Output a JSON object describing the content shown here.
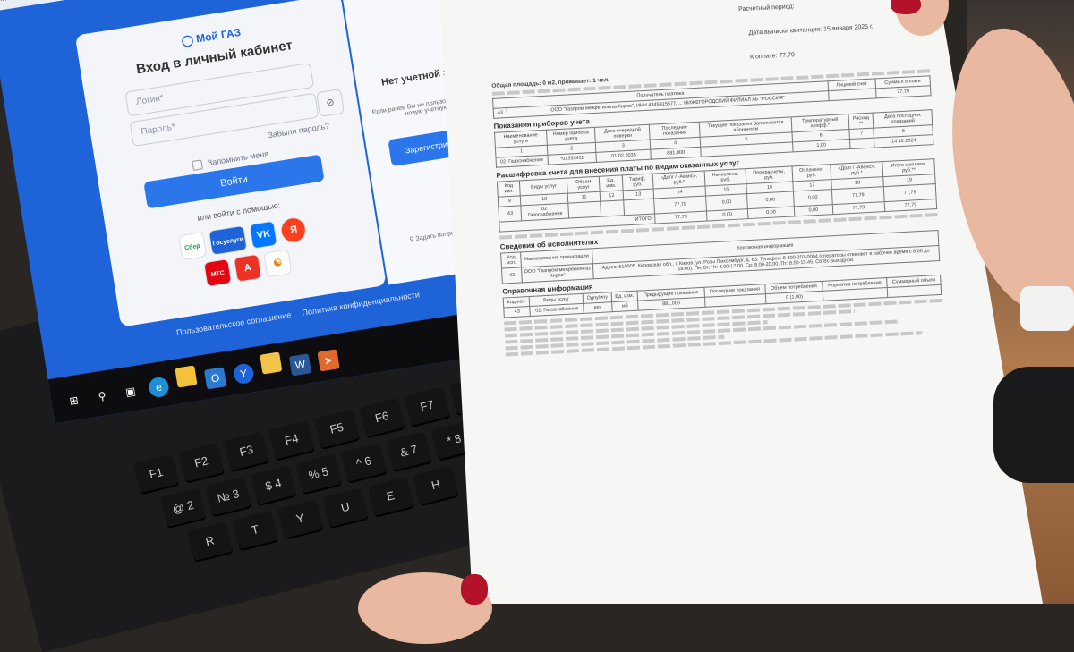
{
  "browser": {
    "url": "lk.mojgaz.ru/auth/sign-in"
  },
  "login": {
    "logo_text": "Мой ГАЗ",
    "title": "Вход в личный кабинет",
    "login_placeholder": "Логин*",
    "password_placeholder": "Пароль*",
    "forgot": "Забыли пароль?",
    "remember": "Запомнить меня",
    "submit": "Войти",
    "or_login_with": "или войти с помощью:",
    "providers": [
      "Сбер",
      "Госуслуги",
      "VK",
      "Я",
      "МТС",
      "А",
      "ОК"
    ]
  },
  "register": {
    "title": "Нет учетной записи?",
    "text": "Если ранее Вы не пользовались ... создайте новую учетную запись",
    "button": "Зарегистрироваться",
    "ask": "Задать вопрос в техподдержку"
  },
  "footer": {
    "agreement": "Пользовательское соглашение",
    "privacy": "Политика конфиденциальности"
  },
  "taskbar": {
    "icons": [
      "windows-start",
      "search",
      "task-view",
      "edge",
      "file-explorer",
      "outlook",
      "yandex-browser",
      "folder",
      "word",
      "telegram"
    ]
  },
  "keyboard": {
    "keys": [
      "F1",
      "F2",
      "F3",
      "F4",
      "F5",
      "F6",
      "F7",
      "F8",
      "@ 2",
      "№ 3",
      "$ 4",
      "% 5",
      "^ 6",
      "& 7",
      "* 8",
      "R",
      "T",
      "Y",
      "U",
      "E",
      "H"
    ]
  },
  "bill": {
    "period": "Расчетный период:",
    "issue_date": "Дата выписки квитанции: 15 января 2025 г.",
    "to_pay": "К оплате: 77,79",
    "area": "Общая площадь: 0 м2, проживает: 1 чел.",
    "recipient_header": "Получатель платежа",
    "account_header": "Лицевой счет",
    "sum_header": "Сумма к оплате",
    "sum": "77,79",
    "recipient": "ООО \"Газпром межрегионгаз Киров\", ИНН 4345015577, ... НИЖЕГОРОДСКИЙ ФИЛИАЛ АБ \"РОССИЯ\"",
    "code": "43",
    "meters_title": "Показания приборов учета",
    "meter_headers": [
      "Наименование услуги",
      "Номер прибора учета",
      "Дата очередной поверки",
      "Последние показания",
      "Текущие показания Заполняются абонентом",
      "Температурный коэфф.*",
      "Расход **",
      "Дата последних показаний"
    ],
    "meter_nums": [
      "1",
      "2",
      "3",
      "4",
      "5",
      "6",
      "7",
      "8"
    ],
    "meter_row": [
      "02. Газоснабжение",
      "*01333411",
      "01.02.2035",
      "881,000",
      "",
      "1,00",
      "",
      "14.12.2024"
    ],
    "breakdown_title": "Расшифровка счета для внесения платы по видам оказанных услуг",
    "breakdown_headers": [
      "Код исп.",
      "Виды услуг",
      "Объем услуг",
      "Ед. изм.",
      "Тариф, руб.",
      "«Долг / -Аванс», руб.*",
      "Начислено, руб.",
      "Перерасчеты, руб.",
      "Оплачено, руб.",
      "«Долг / -Аванс», руб.*",
      "Итого к оплате, руб.**"
    ],
    "breakdown_nums": [
      "9",
      "10",
      "11",
      "12",
      "13",
      "14",
      "15",
      "16",
      "17",
      "18",
      "19"
    ],
    "breakdown_row": [
      "43",
      "02. Газоснабжение",
      "",
      "",
      "",
      "77,79",
      "0,00",
      "0,00",
      "0,00",
      "77,79",
      "77,79"
    ],
    "total_label": "ИТОГО:",
    "total_row": [
      "77,79",
      "0,00",
      "0,00",
      "0,00",
      "77,79",
      "77,79"
    ],
    "executor_title": "Сведения об исполнителях",
    "executor_headers": [
      "Код исп.",
      "Наименование организации",
      "Контактная информация"
    ],
    "executor_row": [
      "43",
      "ООО \"Газпром межрегионгаз Киров\"",
      "Адрес: 610005, Кировская обл., г. Киров, ул. Розы Люксембург, д. 63. Телефон: 8-800-201-0004 (операторы отвечают в рабочее время с 8:00 до 18:00). Пн, Вт, Чт: 8.00-17.00, Ср: 8.00-20.00, Пт: 8.00-15.45, Сб-Вс выходной."
    ],
    "reference_title": "Справочная информация",
    "reference_headers": [
      "Код исп.",
      "Виды услуг",
      "Одпу/ипу",
      "Ед. изм.",
      "Предыдущие показания",
      "Последние показания",
      "Объем потребления",
      "Норматив потребления",
      "Суммарный объем"
    ],
    "reference_row": [
      "43",
      "02. Газоснабжение",
      "ипу",
      "м3",
      "881,000",
      "",
      "0 (1,00)",
      "",
      ""
    ]
  }
}
